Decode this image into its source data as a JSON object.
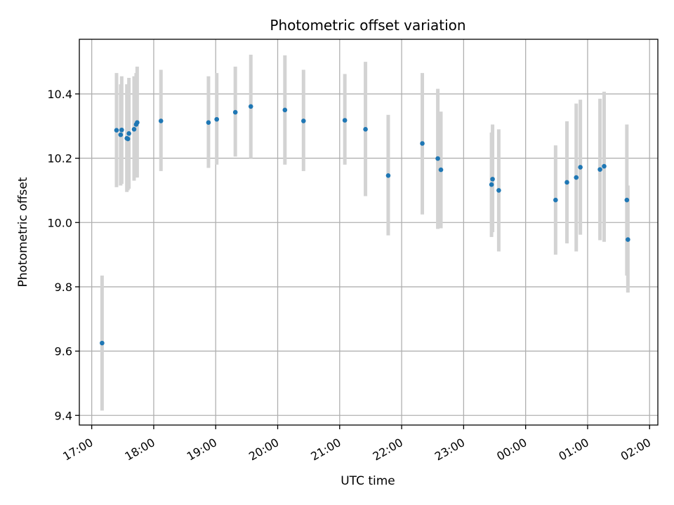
{
  "chart_data": {
    "type": "scatter",
    "title": "Photometric offset variation",
    "xlabel": "UTC time",
    "ylabel": "Photometric offset",
    "xlim": [
      "16:48",
      "26:08"
    ],
    "ylim": [
      9.37,
      10.57
    ],
    "grid": true,
    "x_ticks": [
      {
        "t": "17:00",
        "label": "17:00"
      },
      {
        "t": "18:00",
        "label": "18:00"
      },
      {
        "t": "19:00",
        "label": "19:00"
      },
      {
        "t": "20:00",
        "label": "20:00"
      },
      {
        "t": "21:00",
        "label": "21:00"
      },
      {
        "t": "22:00",
        "label": "22:00"
      },
      {
        "t": "23:00",
        "label": "23:00"
      },
      {
        "t": "24:00",
        "label": "00:00"
      },
      {
        "t": "25:00",
        "label": "01:00"
      },
      {
        "t": "26:00",
        "label": "02:00"
      }
    ],
    "y_ticks": [
      "9.4",
      "9.6",
      "9.8",
      "10.0",
      "10.2",
      "10.4"
    ],
    "points": [
      {
        "t": "17:10",
        "y": 9.625,
        "lo": 9.415,
        "hi": 9.835
      },
      {
        "t": "17:24",
        "y": 10.287,
        "lo": 10.11,
        "hi": 10.465
      },
      {
        "t": "17:28",
        "y": 10.273,
        "lo": 10.115,
        "hi": 10.43
      },
      {
        "t": "17:29",
        "y": 10.288,
        "lo": 10.12,
        "hi": 10.455
      },
      {
        "t": "17:34",
        "y": 10.262,
        "lo": 10.095,
        "hi": 10.43
      },
      {
        "t": "17:35",
        "y": 10.26,
        "lo": 10.1,
        "hi": 10.42
      },
      {
        "t": "17:36",
        "y": 10.277,
        "lo": 10.105,
        "hi": 10.45
      },
      {
        "t": "17:41",
        "y": 10.29,
        "lo": 10.13,
        "hi": 10.455
      },
      {
        "t": "17:43",
        "y": 10.305,
        "lo": 10.14,
        "hi": 10.465
      },
      {
        "t": "17:44",
        "y": 10.311,
        "lo": 10.14,
        "hi": 10.485
      },
      {
        "t": "18:07",
        "y": 10.316,
        "lo": 10.16,
        "hi": 10.475
      },
      {
        "t": "18:53",
        "y": 10.311,
        "lo": 10.17,
        "hi": 10.455
      },
      {
        "t": "19:01",
        "y": 10.321,
        "lo": 10.18,
        "hi": 10.465
      },
      {
        "t": "19:19",
        "y": 10.343,
        "lo": 10.205,
        "hi": 10.485
      },
      {
        "t": "19:34",
        "y": 10.361,
        "lo": 10.2,
        "hi": 10.522
      },
      {
        "t": "20:07",
        "y": 10.35,
        "lo": 10.18,
        "hi": 10.52
      },
      {
        "t": "20:25",
        "y": 10.316,
        "lo": 10.16,
        "hi": 10.475
      },
      {
        "t": "21:05",
        "y": 10.318,
        "lo": 10.18,
        "hi": 10.462
      },
      {
        "t": "21:25",
        "y": 10.29,
        "lo": 10.082,
        "hi": 10.5
      },
      {
        "t": "21:47",
        "y": 10.146,
        "lo": 9.96,
        "hi": 10.335
      },
      {
        "t": "22:20",
        "y": 10.246,
        "lo": 10.025,
        "hi": 10.465
      },
      {
        "t": "22:35",
        "y": 10.199,
        "lo": 9.98,
        "hi": 10.416
      },
      {
        "t": "22:38",
        "y": 10.164,
        "lo": 9.982,
        "hi": 10.345
      },
      {
        "t": "23:27",
        "y": 10.118,
        "lo": 9.955,
        "hi": 10.28
      },
      {
        "t": "23:28",
        "y": 10.135,
        "lo": 9.97,
        "hi": 10.305
      },
      {
        "t": "23:34",
        "y": 10.1,
        "lo": 9.91,
        "hi": 10.29
      },
      {
        "t": "24:29",
        "y": 10.07,
        "lo": 9.9,
        "hi": 10.24
      },
      {
        "t": "24:40",
        "y": 10.125,
        "lo": 9.935,
        "hi": 10.315
      },
      {
        "t": "24:49",
        "y": 10.14,
        "lo": 9.91,
        "hi": 10.37
      },
      {
        "t": "24:53",
        "y": 10.172,
        "lo": 9.962,
        "hi": 10.382
      },
      {
        "t": "25:12",
        "y": 10.165,
        "lo": 9.945,
        "hi": 10.385
      },
      {
        "t": "25:16",
        "y": 10.175,
        "lo": 9.94,
        "hi": 10.407
      },
      {
        "t": "25:38",
        "y": 10.07,
        "lo": 9.835,
        "hi": 10.305
      },
      {
        "t": "25:39",
        "y": 9.947,
        "lo": 9.782,
        "hi": 10.115
      }
    ],
    "colors": {
      "point": "#1f77b4",
      "errorbar": "#d3d3d3",
      "grid": "#b0b0b0"
    }
  }
}
